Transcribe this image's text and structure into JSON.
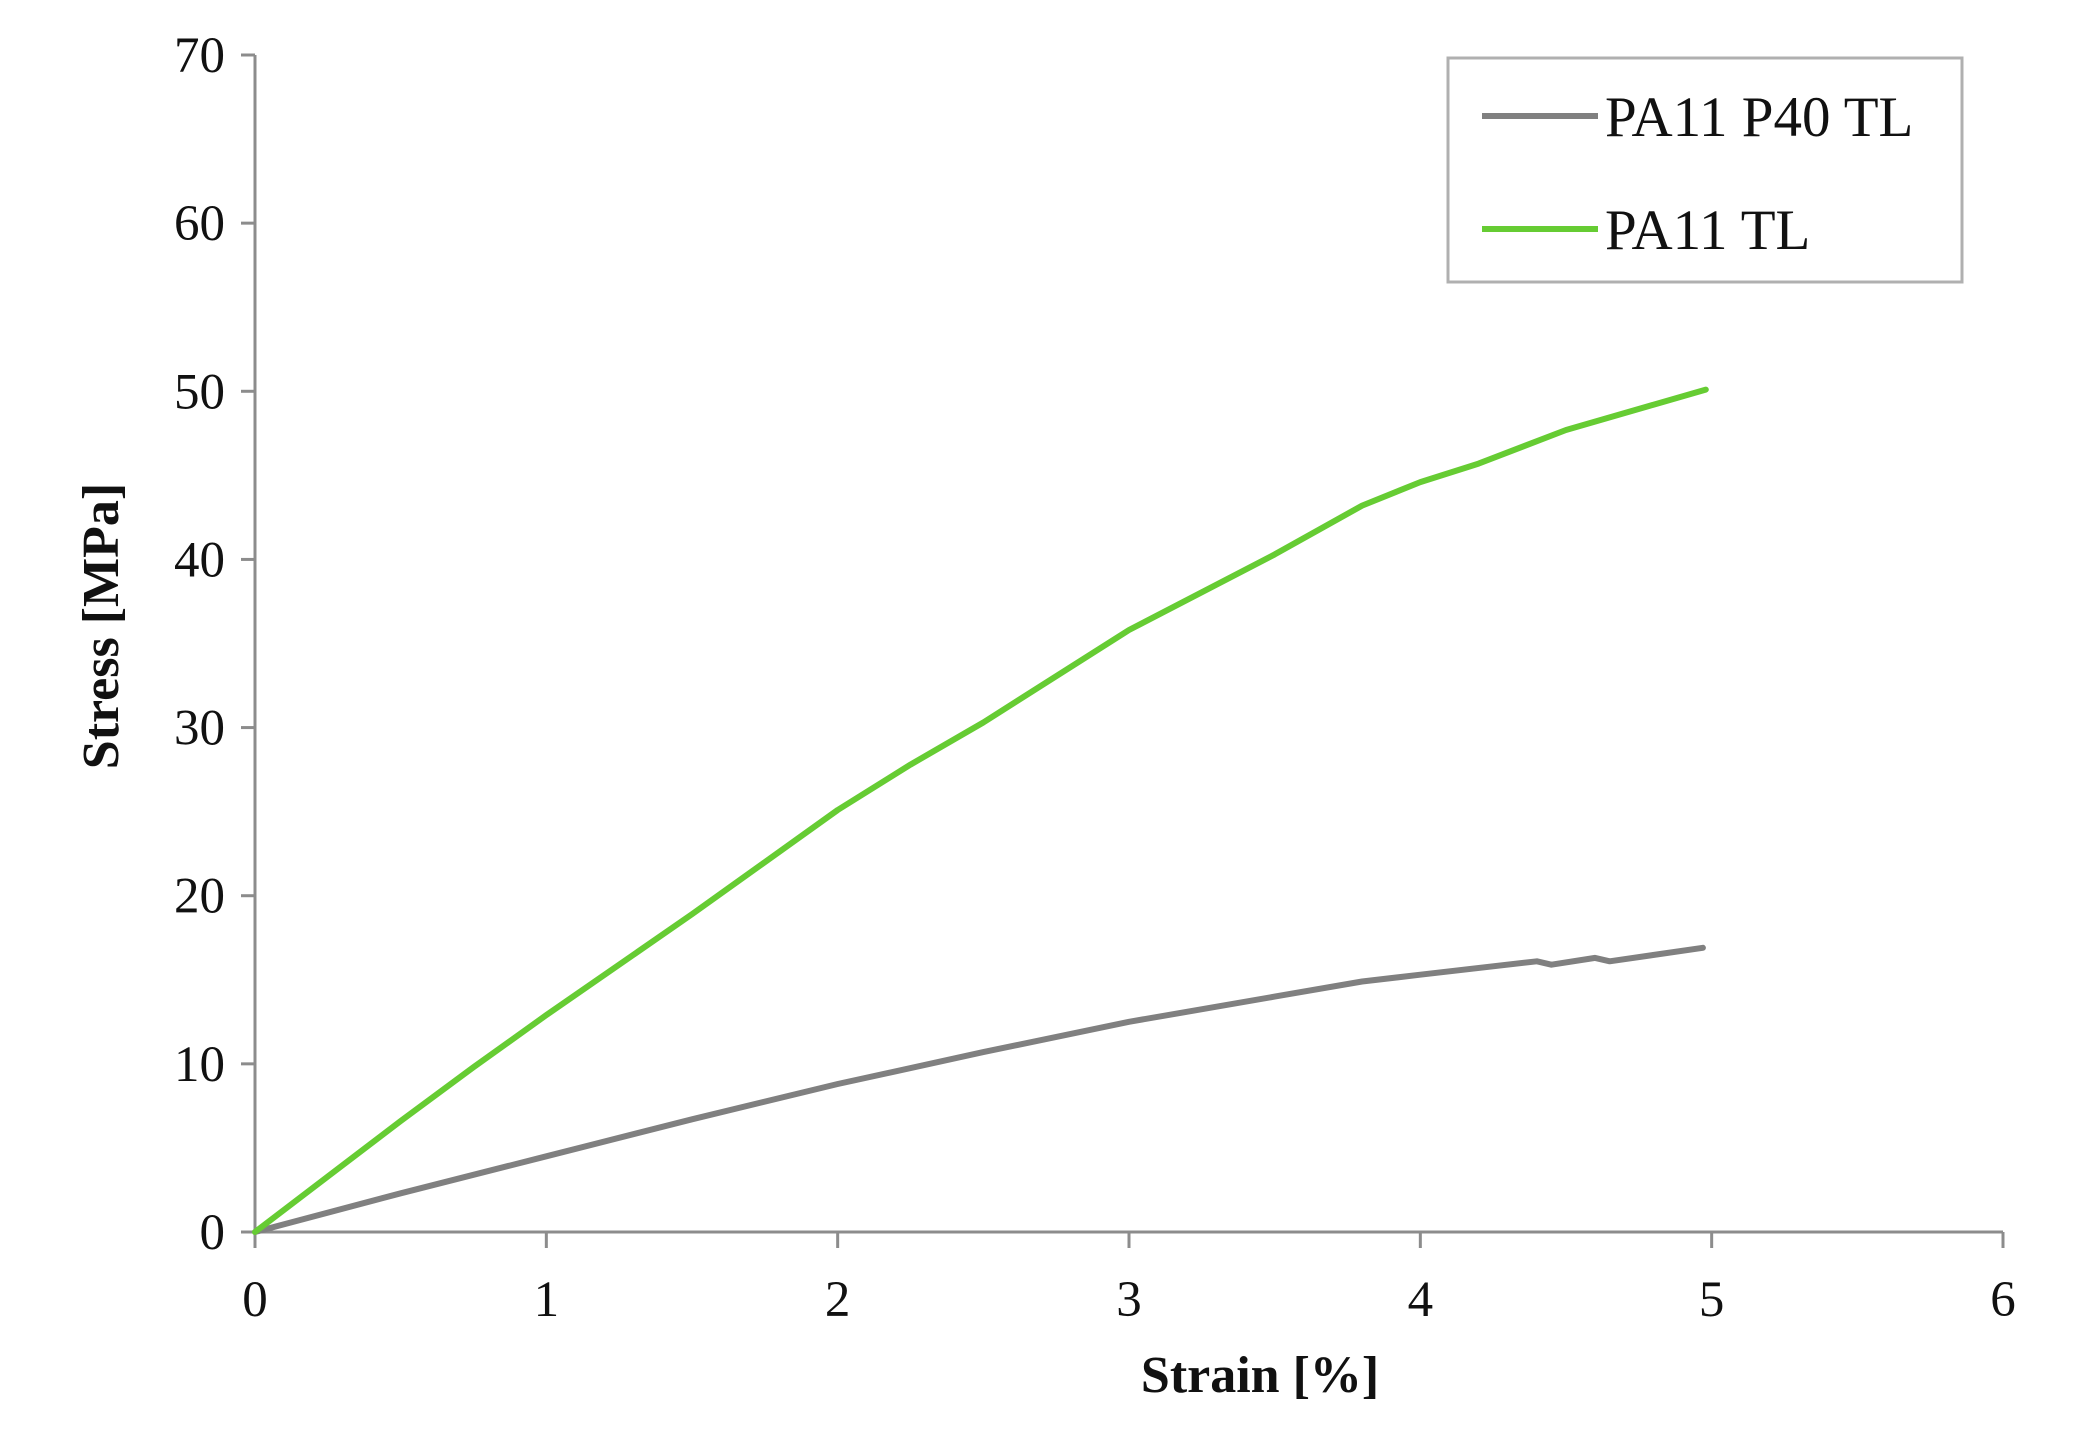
{
  "chart_data": {
    "type": "line",
    "xlabel": "Strain [%]",
    "ylabel": "Stress [MPa]",
    "xlim": [
      0,
      6
    ],
    "ylim": [
      0,
      70
    ],
    "x_ticks": [
      "0",
      "1",
      "2",
      "3",
      "4",
      "5",
      "6"
    ],
    "y_ticks": [
      "0",
      "10",
      "20",
      "30",
      "40",
      "50",
      "60",
      "70"
    ],
    "grid": false,
    "legend_position": "top-right",
    "series": [
      {
        "name": "PA11 P40 TL",
        "color": "#808080",
        "points": [
          [
            0,
            0
          ],
          [
            0.5,
            2.3
          ],
          [
            1,
            4.5
          ],
          [
            1.5,
            6.7
          ],
          [
            2,
            8.8
          ],
          [
            2.5,
            10.7
          ],
          [
            3,
            12.5
          ],
          [
            3.5,
            14
          ],
          [
            3.8,
            14.9
          ],
          [
            4,
            15.3
          ],
          [
            4.4,
            16.1
          ],
          [
            4.45,
            15.9
          ],
          [
            4.6,
            16.3
          ],
          [
            4.65,
            16.1
          ],
          [
            4.97,
            16.9
          ]
        ]
      },
      {
        "name": "PA11 TL",
        "color": "#66cc33",
        "points": [
          [
            0,
            0
          ],
          [
            0.25,
            3.3
          ],
          [
            0.5,
            6.6
          ],
          [
            0.75,
            9.8
          ],
          [
            1,
            12.9
          ],
          [
            1.5,
            18.9
          ],
          [
            2,
            25.1
          ],
          [
            2.25,
            27.8
          ],
          [
            2.5,
            30.3
          ],
          [
            3,
            35.8
          ],
          [
            3.5,
            40.3
          ],
          [
            3.8,
            43.2
          ],
          [
            4,
            44.6
          ],
          [
            4.2,
            45.7
          ],
          [
            4.5,
            47.7
          ],
          [
            4.8,
            49.2
          ],
          [
            4.98,
            50.1
          ]
        ]
      }
    ]
  }
}
